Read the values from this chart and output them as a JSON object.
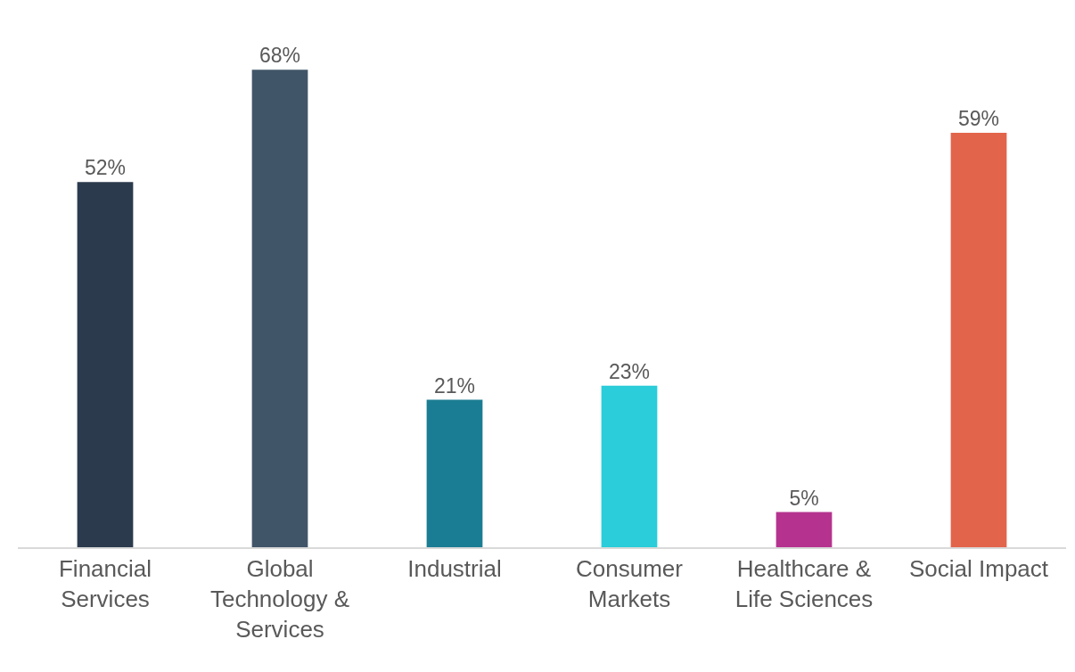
{
  "chart_data": {
    "type": "bar",
    "categories": [
      "Financial Services",
      "Global Technology & Services",
      "Industrial",
      "Consumer Markets",
      "Healthcare & Life Sciences",
      "Social Impact"
    ],
    "values": [
      52,
      68,
      21,
      23,
      5,
      59
    ],
    "value_labels": [
      "52%",
      "68%",
      "21%",
      "23%",
      "5%",
      "59%"
    ],
    "colors": [
      "#2c3a4d",
      "#415569",
      "#1b7d93",
      "#2acdd9",
      "#b5338f",
      "#e2644b"
    ]
  }
}
